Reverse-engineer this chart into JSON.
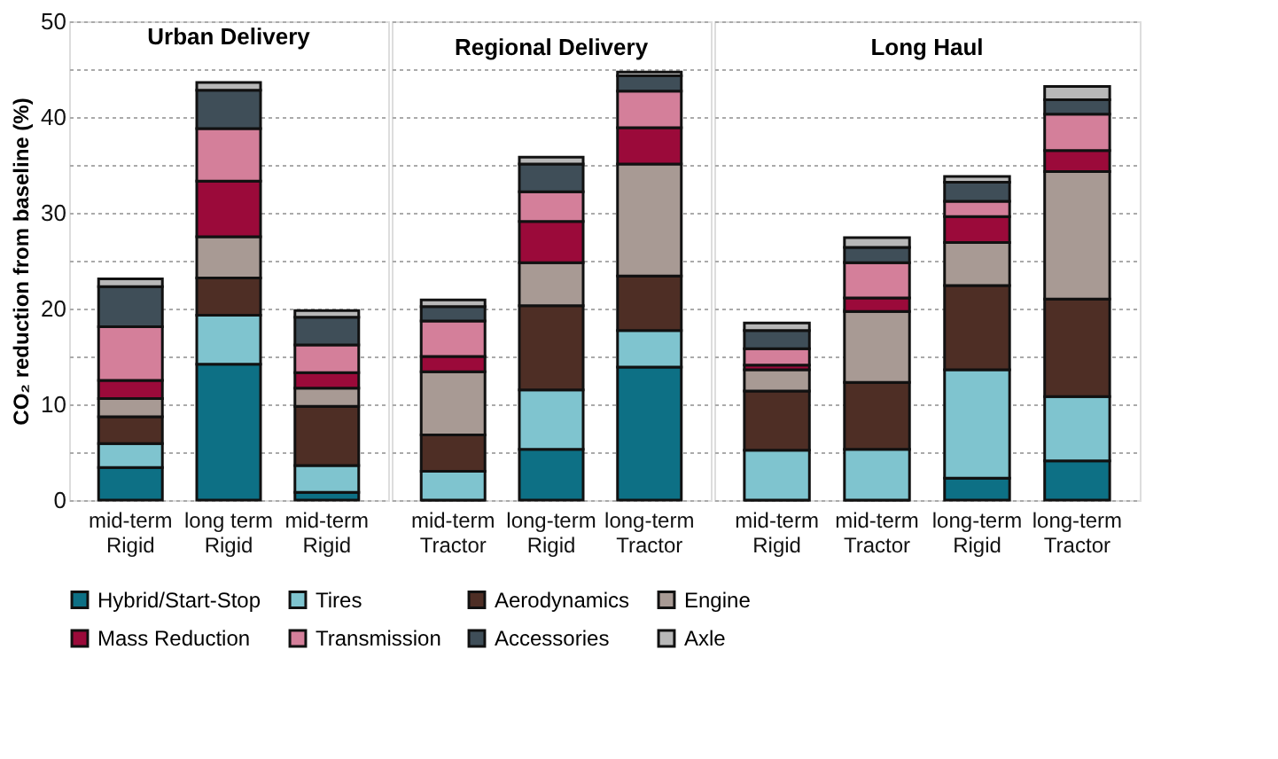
{
  "chart_data": [
    {
      "type": "bar",
      "stacked": true,
      "title": "Urban Delivery",
      "ylabel": "CO₂ reduction from baseline (%)",
      "categories": [
        "mid-term Rigid",
        "long term Rigid",
        "mid-term Rigid"
      ],
      "ylim": [
        0,
        50
      ],
      "yticks": [
        0,
        {
          "value": 5,
          "label": null
        },
        10,
        {
          "value": 15,
          "label": null
        },
        20,
        {
          "value": 25,
          "label": null
        },
        30,
        {
          "value": 35,
          "label": null
        },
        40,
        {
          "value": 45,
          "label": null
        },
        50
      ],
      "grid": "y",
      "legend": "bottom",
      "series": [
        {
          "name": "Hybrid/Start-Stop",
          "color": "#0d7085",
          "values": [
            3.4,
            14.2,
            0.8
          ]
        },
        {
          "name": "Tires",
          "color": "#7fc4cf",
          "values": [
            2.5,
            5.1,
            2.8
          ]
        },
        {
          "name": "Aerodynamics",
          "color": "#4e2e25",
          "values": [
            2.8,
            3.9,
            6.2
          ]
        },
        {
          "name": "Engine",
          "color": "#a89a94",
          "values": [
            1.9,
            4.3,
            1.9
          ]
        },
        {
          "name": "Mass Reduction",
          "color": "#9b0a3a",
          "values": [
            1.9,
            5.8,
            1.6
          ]
        },
        {
          "name": "Transmission",
          "color": "#d47f9a",
          "values": [
            5.6,
            5.5,
            2.9
          ]
        },
        {
          "name": "Accessories",
          "color": "#3f4e58",
          "values": [
            4.2,
            4.0,
            2.9
          ]
        },
        {
          "name": "Axle",
          "color": "#b8b8b8",
          "values": [
            0.8,
            0.8,
            0.7
          ]
        }
      ]
    },
    {
      "type": "bar",
      "stacked": true,
      "title": "Regional Delivery",
      "categories": [
        "mid-term Tractor",
        "long-term Rigid",
        "long-term Tractor"
      ],
      "ylim": [
        0,
        50
      ],
      "yticks": [
        0,
        {
          "value": 5,
          "label": null
        },
        10,
        {
          "value": 15,
          "label": null
        },
        20,
        {
          "value": 25,
          "label": null
        },
        30,
        {
          "value": 35,
          "label": null
        },
        40,
        {
          "value": 45,
          "label": null
        },
        50
      ],
      "grid": "y",
      "legend": "bottom",
      "tick_labels": "x",
      "series": [
        {
          "name": "Hybrid/Start-Stop",
          "color": "#0d7085",
          "values": [
            0,
            5.3,
            13.9
          ]
        },
        {
          "name": "Tires",
          "color": "#7fc4cf",
          "values": [
            3.0,
            6.2,
            3.8
          ]
        },
        {
          "name": "Aerodynamics",
          "color": "#4e2e25",
          "values": [
            3.8,
            8.8,
            5.7
          ]
        },
        {
          "name": "Engine",
          "color": "#a89a94",
          "values": [
            6.6,
            4.5,
            11.7
          ]
        },
        {
          "name": "Mass Reduction",
          "color": "#9b0a3a",
          "values": [
            1.6,
            4.3,
            3.8
          ]
        },
        {
          "name": "Transmission",
          "color": "#d47f9a",
          "values": [
            3.7,
            3.1,
            3.8
          ]
        },
        {
          "name": "Accessories",
          "color": "#3f4e58",
          "values": [
            1.5,
            2.9,
            1.6
          ]
        },
        {
          "name": "Axle",
          "color": "#b8b8b8",
          "values": [
            0.7,
            0.7,
            0.4
          ]
        }
      ]
    },
    {
      "type": "bar",
      "stacked": true,
      "title": "Long Haul",
      "categories": [
        "mid-term Rigid",
        "mid-term Tractor",
        "long-term Rigid",
        "long-term Tractor"
      ],
      "ylim": [
        0,
        50
      ],
      "yticks": [
        0,
        {
          "value": 5,
          "label": null
        },
        10,
        {
          "value": 15,
          "label": null
        },
        20,
        {
          "value": 25,
          "label": null
        },
        30,
        {
          "value": 35,
          "label": null
        },
        40,
        {
          "value": 45,
          "label": null
        },
        50
      ],
      "grid": "y",
      "legend": "bottom",
      "tick_labels": "x",
      "series": [
        {
          "name": "Hybrid/Start-Stop",
          "color": "#0d7085",
          "values": [
            0,
            0,
            2.3,
            4.1
          ]
        },
        {
          "name": "Tires",
          "color": "#7fc4cf",
          "values": [
            5.2,
            5.3,
            11.3,
            6.7
          ]
        },
        {
          "name": "Aerodynamics",
          "color": "#4e2e25",
          "values": [
            6.2,
            7.0,
            8.8,
            10.2
          ]
        },
        {
          "name": "Engine",
          "color": "#a89a94",
          "values": [
            2.2,
            7.4,
            4.5,
            13.3
          ]
        },
        {
          "name": "Mass Reduction",
          "color": "#9b0a3a",
          "values": [
            0.5,
            1.4,
            2.7,
            2.2
          ]
        },
        {
          "name": "Transmission",
          "color": "#d47f9a",
          "values": [
            1.7,
            3.7,
            1.6,
            3.8
          ]
        },
        {
          "name": "Accessories",
          "color": "#3f4e58",
          "values": [
            1.9,
            1.6,
            2.0,
            1.5
          ]
        },
        {
          "name": "Axle",
          "color": "#b8b8b8",
          "values": [
            0.8,
            1.0,
            0.6,
            1.4
          ]
        }
      ]
    }
  ]
}
